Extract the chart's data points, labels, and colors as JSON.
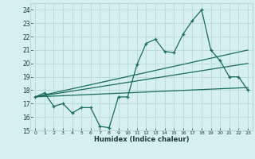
{
  "xlabel": "Humidex (Indice chaleur)",
  "ylabel": "",
  "bg_color": "#d6efef",
  "grid_color": "#b8d8d8",
  "line_color": "#1a6b5a",
  "xlim": [
    -0.5,
    23.5
  ],
  "ylim": [
    15,
    24.5
  ],
  "yticks": [
    15,
    16,
    17,
    18,
    19,
    20,
    21,
    22,
    23,
    24
  ],
  "xticks": [
    0,
    1,
    2,
    3,
    4,
    5,
    6,
    7,
    8,
    9,
    10,
    11,
    12,
    13,
    14,
    15,
    16,
    17,
    18,
    19,
    20,
    21,
    22,
    23
  ],
  "main_line_x": [
    0,
    1,
    2,
    3,
    4,
    5,
    6,
    7,
    8,
    9,
    10,
    11,
    12,
    13,
    14,
    15,
    16,
    17,
    18,
    19,
    20,
    21,
    22,
    23
  ],
  "main_line_y": [
    17.5,
    17.8,
    16.8,
    17.0,
    16.3,
    16.7,
    16.7,
    15.3,
    15.2,
    17.5,
    17.5,
    19.9,
    21.5,
    21.8,
    20.9,
    20.8,
    22.2,
    23.2,
    24.0,
    21.0,
    20.2,
    19.0,
    19.0,
    18.0
  ],
  "trend_line1_x": [
    0,
    23
  ],
  "trend_line1_y": [
    17.5,
    21.0
  ],
  "trend_line2_x": [
    0,
    23
  ],
  "trend_line2_y": [
    17.5,
    20.0
  ],
  "trend_line3_x": [
    0,
    23
  ],
  "trend_line3_y": [
    17.5,
    18.2
  ]
}
